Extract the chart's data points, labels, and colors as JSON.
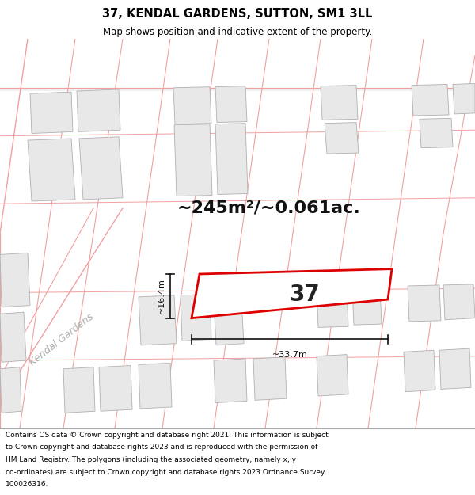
{
  "title_line1": "37, KENDAL GARDENS, SUTTON, SM1 3LL",
  "title_line2": "Map shows position and indicative extent of the property.",
  "footer_lines": [
    "Contains OS data © Crown copyright and database right 2021. This information is subject",
    "to Crown copyright and database rights 2023 and is reproduced with the permission of",
    "HM Land Registry. The polygons (including the associated geometry, namely x, y",
    "co-ordinates) are subject to Crown copyright and database rights 2023 Ordnance Survey",
    "100026316."
  ],
  "area_text": "~245m²/~0.061ac.",
  "number_text": "37",
  "dim1_text": "~16.4m",
  "dim2_text": "~33.7m",
  "street_label": "Kendal Gardens",
  "map_bg_color": "#ffffff",
  "building_fill": "#e8e8e8",
  "building_edge": "#b0b0b0",
  "plot_line_color": "#f0a0a0",
  "property_fill": "#ffffff",
  "property_edge": "#dd0000",
  "dim_line_color": "#111111",
  "street_color": "#aaaaaa",
  "title_fontsize": 10.5,
  "subtitle_fontsize": 8.5,
  "footer_fontsize": 6.5,
  "area_fontsize": 16,
  "number_fontsize": 20,
  "dim_fontsize": 8,
  "street_fontsize": 9
}
